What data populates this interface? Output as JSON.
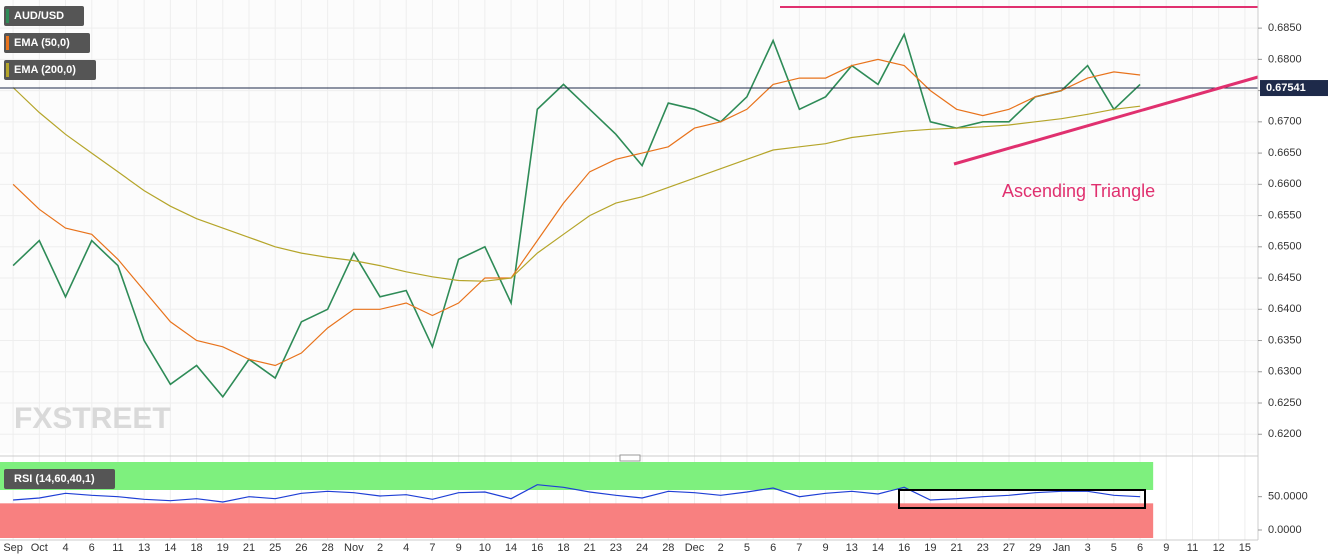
{
  "chart_data": [
    {
      "type": "line",
      "categories": [
        "Sep",
        "Oct",
        "4",
        "6",
        "11",
        "13",
        "14",
        "18",
        "19",
        "21",
        "25",
        "26",
        "28",
        "Nov",
        "2",
        "4",
        "7",
        "9",
        "10",
        "14",
        "16",
        "18",
        "21",
        "23",
        "24",
        "28",
        "Dec",
        "2",
        "5",
        "6",
        "7",
        "9",
        "13",
        "14",
        "16",
        "19",
        "21",
        "23",
        "27",
        "29",
        "Jan",
        "3",
        "5",
        "6",
        "9",
        "11",
        "12",
        "15"
      ],
      "series": [
        {
          "name": "AUD/USD",
          "color": "#2e8b57",
          "values": [
            0.647,
            0.651,
            0.642,
            0.651,
            0.647,
            0.635,
            0.628,
            0.631,
            0.626,
            0.632,
            0.629,
            0.638,
            0.64,
            0.649,
            0.642,
            0.643,
            0.634,
            0.648,
            0.65,
            0.641,
            0.672,
            0.676,
            0.672,
            0.668,
            0.663,
            0.673,
            0.672,
            0.67,
            0.674,
            0.683,
            0.672,
            0.674,
            0.679,
            0.676,
            0.684,
            0.67,
            0.669,
            0.67,
            0.67,
            0.674,
            0.675,
            0.679,
            0.672,
            0.676,
            null,
            null,
            null,
            null
          ]
        },
        {
          "name": "EMA (50,0)",
          "color": "#e8731c",
          "values": [
            0.66,
            0.656,
            0.653,
            0.652,
            0.648,
            0.643,
            0.638,
            0.635,
            0.634,
            0.632,
            0.631,
            0.633,
            0.637,
            0.64,
            0.64,
            0.641,
            0.639,
            0.641,
            0.645,
            0.645,
            0.651,
            0.657,
            0.662,
            0.664,
            0.665,
            0.666,
            0.669,
            0.67,
            0.672,
            0.676,
            0.677,
            0.677,
            0.679,
            0.68,
            0.679,
            0.675,
            0.672,
            0.671,
            0.672,
            0.674,
            0.675,
            0.677,
            0.678,
            0.6775,
            null,
            null,
            null,
            null
          ]
        },
        {
          "name": "EMA (200,0)",
          "color": "#b5a52a",
          "values": [
            0.6755,
            0.6715,
            0.668,
            0.665,
            0.662,
            0.659,
            0.6565,
            0.6545,
            0.653,
            0.6515,
            0.65,
            0.649,
            0.6483,
            0.6478,
            0.647,
            0.646,
            0.6452,
            0.6446,
            0.6445,
            0.645,
            0.649,
            0.652,
            0.655,
            0.657,
            0.658,
            0.6595,
            0.661,
            0.6625,
            0.664,
            0.6655,
            0.666,
            0.6665,
            0.6675,
            0.668,
            0.6685,
            0.6688,
            0.669,
            0.6692,
            0.6695,
            0.67,
            0.6705,
            0.6712,
            0.672,
            0.6725,
            null,
            null,
            null,
            null
          ]
        }
      ],
      "ylim": [
        0.617,
        0.6895
      ],
      "yticks": [
        {
          "value": 0.62,
          "label": "0.6200"
        },
        {
          "value": 0.625,
          "label": "0.6250"
        },
        {
          "value": 0.63,
          "label": "0.6300"
        },
        {
          "value": 0.635,
          "label": "0.6350"
        },
        {
          "value": 0.64,
          "label": "0.6400"
        },
        {
          "value": 0.645,
          "label": "0.6450"
        },
        {
          "value": 0.65,
          "label": "0.6500"
        },
        {
          "value": 0.655,
          "label": "0.6550"
        },
        {
          "value": 0.66,
          "label": "0.6600"
        },
        {
          "value": 0.665,
          "label": "0.6650"
        },
        {
          "value": 0.67,
          "label": "0.6700"
        },
        {
          "value": 0.675,
          "label": "0.6750"
        },
        {
          "value": 0.68,
          "label": "0.6800"
        },
        {
          "value": 0.685,
          "label": "0.6850"
        }
      ],
      "last_price": 0.67541,
      "annotation": "Ascending Triangle",
      "watermark": "FXSTREET",
      "grid": true
    },
    {
      "type": "line",
      "title": "RSI (14,60,40,1)",
      "series": [
        {
          "name": "RSI",
          "color": "#1f3fd6",
          "values": [
            45,
            48,
            55,
            52,
            50,
            46,
            44,
            47,
            42,
            50,
            47,
            55,
            58,
            56,
            51,
            53,
            46,
            56,
            57,
            47,
            68,
            64,
            57,
            52,
            48,
            58,
            56,
            52,
            57,
            63,
            50,
            55,
            58,
            54,
            64,
            45,
            47,
            50,
            52,
            56,
            58,
            58,
            52,
            50,
            null,
            null,
            null,
            null
          ]
        }
      ],
      "upper_band": 60,
      "lower_band": 40,
      "ylim": [
        -12,
        102
      ],
      "yticks": [
        {
          "value": 0,
          "label": "0.0000"
        },
        {
          "value": 50,
          "label": "50.0000"
        }
      ]
    }
  ]
}
